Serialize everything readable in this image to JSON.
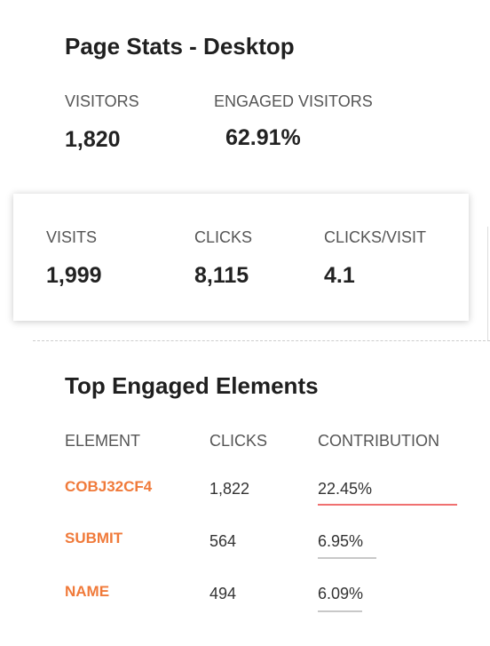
{
  "header": {
    "title": "Page Stats - Desktop"
  },
  "summary": [
    {
      "label": "VISITORS",
      "value": "1,820"
    },
    {
      "label": "ENGAGED VISITORS",
      "value": "62.91%"
    }
  ],
  "card": [
    {
      "label": "VISITS",
      "value": "1,999"
    },
    {
      "label": "CLICKS",
      "value": "8,115"
    },
    {
      "label": "CLICKS/VISIT",
      "value": "4.1"
    }
  ],
  "top_elements": {
    "title": "Top Engaged Elements",
    "columns": [
      "ELEMENT",
      "CLICKS",
      "CONTRIBUTION"
    ],
    "rows": [
      [
        "COBJ32CF4",
        "1,822",
        "22.45%"
      ],
      [
        "SUBMIT",
        "564",
        "6.95%"
      ],
      [
        "NAME",
        "494",
        "6.09%"
      ]
    ]
  }
}
